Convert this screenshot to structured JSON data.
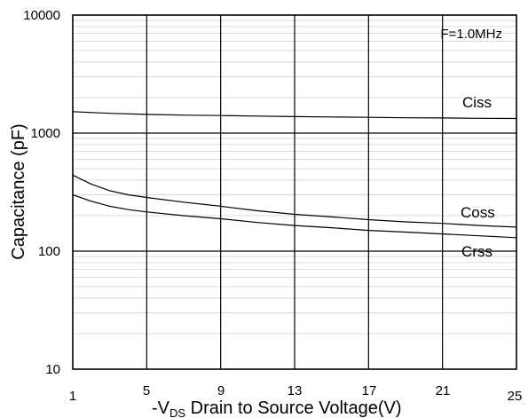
{
  "chart_data": {
    "type": "line",
    "title": "",
    "annotation": "F=1.0MHz",
    "xlabel": {
      "prefix": "-V",
      "subscript": "DS",
      "suffix": " Drain to Source Voltage(V)"
    },
    "ylabel": "Capacitance (pF)",
    "xlim": [
      1,
      25
    ],
    "ylim": [
      10,
      10000
    ],
    "y_scale": "log",
    "grid": true,
    "x_ticks": [
      1,
      5,
      9,
      13,
      17,
      21,
      25
    ],
    "x_tick_labels": [
      "1",
      "5",
      "9",
      "13",
      "17",
      "21",
      "25"
    ],
    "y_ticks": [
      10,
      100,
      1000,
      10000
    ],
    "y_tick_labels": [
      "10",
      "100",
      "1000",
      "10000"
    ],
    "legend": "inline labels at right",
    "series": [
      {
        "name": "Ciss",
        "x": [
          1,
          3,
          5,
          7,
          9,
          11,
          13,
          15,
          17,
          19,
          21,
          23,
          25
        ],
        "y": [
          1520,
          1470,
          1440,
          1420,
          1410,
          1395,
          1380,
          1370,
          1360,
          1350,
          1345,
          1335,
          1330
        ]
      },
      {
        "name": "Coss",
        "x": [
          1,
          2,
          3,
          4,
          5,
          7,
          9,
          11,
          13,
          15,
          17,
          19,
          21,
          23,
          25
        ],
        "y": [
          440,
          370,
          325,
          300,
          285,
          260,
          240,
          220,
          205,
          195,
          185,
          177,
          172,
          165,
          160
        ]
      },
      {
        "name": "Crss",
        "x": [
          1,
          2,
          3,
          4,
          5,
          7,
          9,
          11,
          13,
          15,
          17,
          19,
          21,
          23,
          25
        ],
        "y": [
          300,
          265,
          240,
          225,
          215,
          200,
          188,
          175,
          165,
          158,
          150,
          145,
          140,
          135,
          130
        ]
      }
    ]
  }
}
